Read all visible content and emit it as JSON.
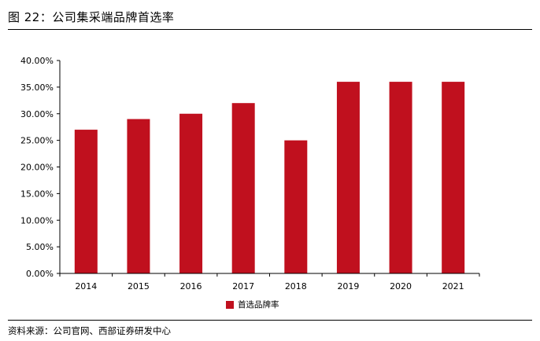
{
  "header": {
    "title": "图 22：公司集采端品牌首选率"
  },
  "footer": {
    "source": "资料来源：公司官网、西部证券研发中心"
  },
  "colors": {
    "bar": "#C0101E",
    "axis": "#000000",
    "text": "#000000"
  },
  "chart_data": {
    "type": "bar",
    "categories": [
      "2014",
      "2015",
      "2016",
      "2017",
      "2018",
      "2019",
      "2020",
      "2021"
    ],
    "series": [
      {
        "name": "首选品牌率",
        "values": [
          27.0,
          29.0,
          30.0,
          32.0,
          25.0,
          36.0,
          36.0,
          36.0
        ]
      }
    ],
    "ylim": [
      0,
      40
    ],
    "yticks": [
      "0.00%",
      "5.00%",
      "10.00%",
      "15.00%",
      "20.00%",
      "25.00%",
      "30.00%",
      "35.00%",
      "40.00%"
    ],
    "ytick_values": [
      0,
      5,
      10,
      15,
      20,
      25,
      30,
      35,
      40
    ],
    "grid": false,
    "legend_position": "bottom-center",
    "title": "",
    "xlabel": "",
    "ylabel": ""
  }
}
